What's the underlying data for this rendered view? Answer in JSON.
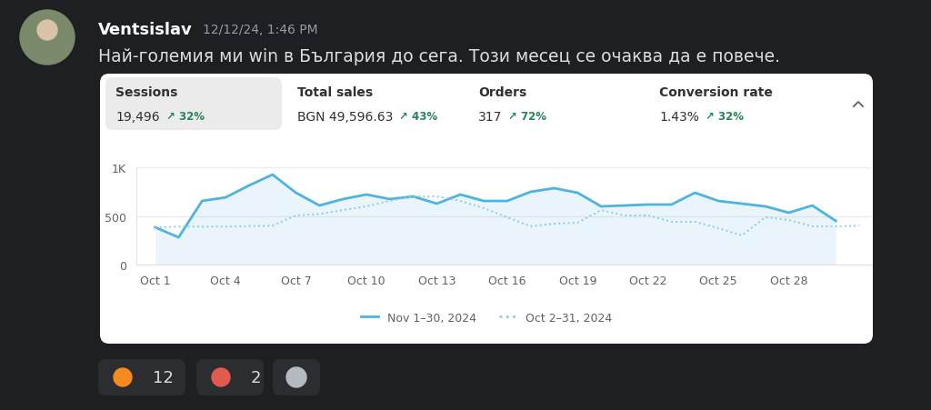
{
  "message": {
    "author": "Ventsislav",
    "timestamp": "12/12/24, 1:46 PM",
    "text": "Най-големия ми win в България до сега. Този месец се очаква да е повече."
  },
  "metrics": [
    {
      "label": "Sessions",
      "value": "19,496",
      "change": "↗ 32%"
    },
    {
      "label": "Total sales",
      "value": "BGN 49,596.63",
      "change": "↗ 43%"
    },
    {
      "label": "Orders",
      "value": "317",
      "change": "↗ 72%"
    },
    {
      "label": "Conversion rate",
      "value": "1.43%",
      "change": "↗ 32%"
    }
  ],
  "chart_data": {
    "type": "line",
    "categories": [
      "Oct 1",
      null,
      null,
      "Oct 4",
      null,
      null,
      "Oct 7",
      null,
      null,
      "Oct 10",
      null,
      null,
      "Oct 13",
      null,
      null,
      "Oct 16",
      null,
      null,
      "Oct 19",
      null,
      null,
      "Oct 22",
      null,
      null,
      "Oct 25",
      null,
      null,
      "Oct 28",
      null,
      null,
      null
    ],
    "ylim": [
      0,
      1000
    ],
    "yticks": [
      0,
      500,
      {
        "value": 1000,
        "label": "1K"
      }
    ],
    "grid": true,
    "legend": "lower center",
    "series": [
      {
        "name": "Nov 1–30, 2024",
        "color": "#4fb3e0",
        "line_style": "solid",
        "values": [
          383,
          280,
          654,
          690,
          813,
          925,
          738,
          607,
          673,
          720,
          673,
          700,
          626,
          720,
          654,
          654,
          748,
          785,
          738,
          598,
          607,
          617,
          617,
          738,
          654,
          626,
          598,
          533,
          607,
          449,
          null
        ]
      },
      {
        "name": "Oct 2–31, 2024",
        "color": "#8ccbe6",
        "line_style": "dotted",
        "values": [
          383,
          390,
          390,
          390,
          395,
          400,
          505,
          520,
          560,
          600,
          654,
          700,
          700,
          654,
          580,
          486,
          393,
          420,
          430,
          560,
          505,
          505,
          440,
          440,
          374,
          300,
          486,
          458,
          393,
          393,
          400
        ]
      }
    ]
  },
  "reactions": [
    {
      "count": 12
    },
    {
      "count": 2
    }
  ]
}
